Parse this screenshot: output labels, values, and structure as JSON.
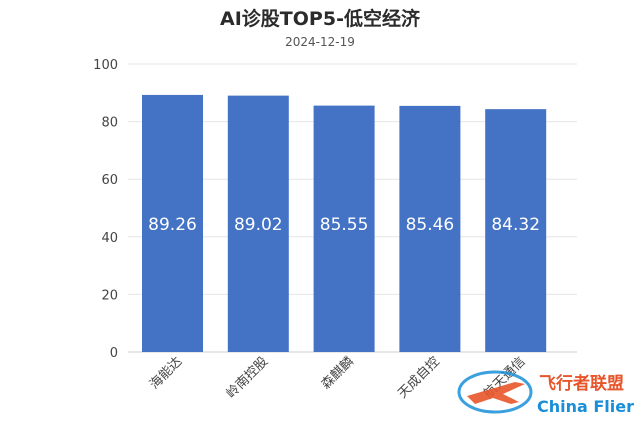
{
  "chart_data": {
    "type": "bar",
    "title": "AI诊股TOP5-低空经济",
    "subtitle": "2024-12-19",
    "categories": [
      "海能达",
      "岭南控股",
      "森麒麟",
      "天成自控",
      "航天通信"
    ],
    "values": [
      89.26,
      89.02,
      85.55,
      85.46,
      84.32
    ],
    "value_labels": [
      "89.26",
      "89.02",
      "85.55",
      "85.46",
      "84.32"
    ],
    "yticks": [
      0,
      20,
      40,
      60,
      80,
      100
    ],
    "ylim": [
      0,
      100
    ],
    "xlabel": "",
    "ylabel": "",
    "grid": true,
    "bar_color": "#4472c4",
    "label_color": "#ffffff"
  },
  "watermark": {
    "text_cn": "飞行者联盟",
    "text_en": "China Flier",
    "color_cn": "#e8552a",
    "color_en": "#1a8fd8",
    "icon": "airplane-logo"
  }
}
